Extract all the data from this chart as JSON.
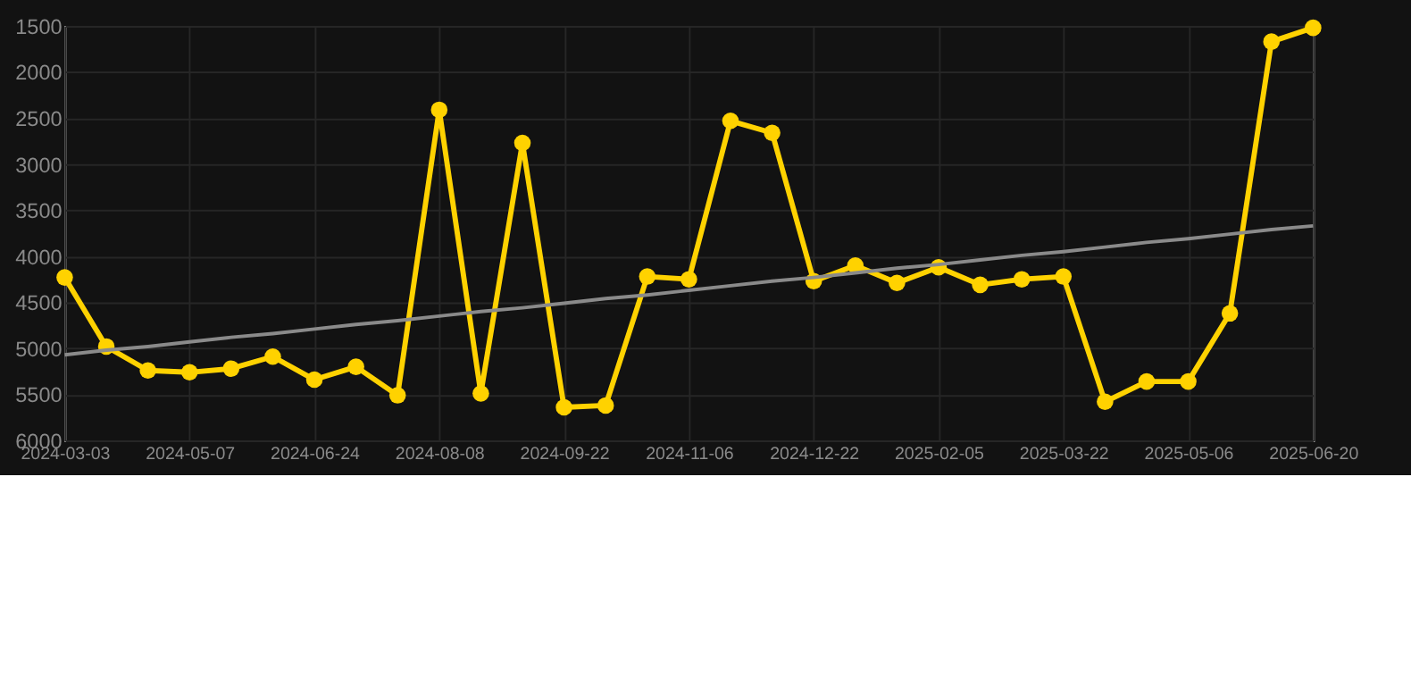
{
  "chart_data": {
    "type": "line",
    "categories": [
      "2024-03-03",
      null,
      null,
      "2024-05-07",
      null,
      null,
      "2024-06-24",
      null,
      null,
      "2024-08-08",
      null,
      null,
      "2024-09-22",
      null,
      null,
      "2024-11-06",
      null,
      null,
      "2024-12-22",
      null,
      null,
      "2025-02-05",
      null,
      null,
      "2025-03-22",
      null,
      null,
      "2025-05-06",
      null,
      null,
      "2025-06-20"
    ],
    "series": [
      {
        "color": "#ffd200",
        "marker": "circle",
        "values": [
          4230,
          4980,
          5240,
          5260,
          5220,
          5090,
          5340,
          5200,
          5510,
          2410,
          5490,
          2770,
          5640,
          5620,
          4220,
          4250,
          2530,
          2660,
          4270,
          4100,
          4290,
          4120,
          4310,
          4250,
          4220,
          5580,
          5360,
          5360,
          4620,
          1670,
          1520
        ]
      },
      {
        "type": "line",
        "color": "#8a8a8a",
        "marker": "none",
        "values": [
          5070,
          5020,
          4980,
          4930,
          4880,
          4840,
          4790,
          4740,
          4700,
          4650,
          4600,
          4560,
          4510,
          4460,
          4420,
          4370,
          4320,
          4270,
          4230,
          4180,
          4130,
          4090,
          4040,
          3990,
          3950,
          3900,
          3850,
          3810,
          3760,
          3710,
          3670
        ]
      }
    ],
    "ylim": [
      6000,
      1500
    ],
    "yticks": [
      1500,
      2000,
      2500,
      3000,
      3500,
      4000,
      4500,
      5000,
      5500,
      6000
    ],
    "grid": true,
    "line_style": "solid"
  }
}
